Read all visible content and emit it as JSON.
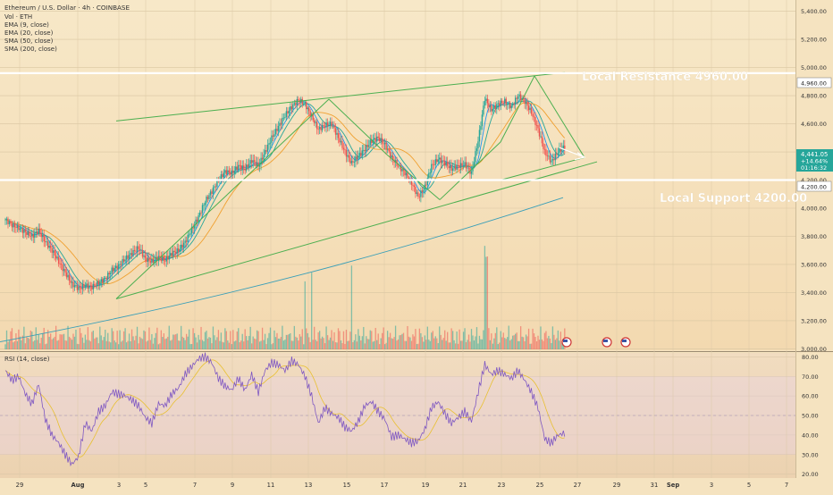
{
  "header": {
    "symbol_line": "Ethereum / U.S. Dollar · 4h · COINBASE",
    "indicators": [
      "Vol · ETH",
      "EMA (9, close)",
      "EMA (20, close)",
      "SMA (50, close)",
      "SMA (200, close)"
    ]
  },
  "price_badge": {
    "price": "4,441.05",
    "change": "+14.64%",
    "timer": "01:16:32"
  },
  "annotations": {
    "resistance_label": "Local Resistance 4960.00",
    "support_label": "Local Support 4200.00",
    "resistance_tick": "4,960.00",
    "support_tick": "4,200.00"
  },
  "rsi_label": "RSI (14, close)",
  "colors": {
    "bull": "#26a69a",
    "bear": "#ef5350",
    "ema9": "#2196f3",
    "ema20": "#26a69a",
    "sma50": "#f0a030",
    "sma200": "#3a9fb8",
    "pattern": "#4caf50",
    "rsi": "#7e57c2",
    "rsi_ma": "#e8c030"
  },
  "chart_data": {
    "type": "candlestick",
    "timeframe": "4h",
    "x_ticks": [
      "29",
      "Aug",
      "3",
      "5",
      "7",
      "9",
      "11",
      "13",
      "15",
      "17",
      "19",
      "21",
      "23",
      "25",
      "27",
      "29",
      "31",
      "Sep",
      "3",
      "5",
      "7"
    ],
    "price_axis": {
      "ticks": [
        "5,400.00",
        "5,200.00",
        "5,000.00",
        "4,800.00",
        "4,600.00",
        "4,400.00",
        "4,200.00",
        "4,000.00",
        "3,800.00",
        "3,600.00",
        "3,400.00",
        "3,200.00",
        "3,000.00"
      ],
      "range": [
        2990,
        5480
      ]
    },
    "rsi_axis": {
      "ticks": [
        "80.00",
        "70.00",
        "60.00",
        "50.00",
        "40.00",
        "30.00",
        "20.00"
      ],
      "range": [
        18,
        82
      ]
    },
    "levels": {
      "resistance": 4960,
      "support": 4200
    },
    "price_path": [
      [
        0,
        3920
      ],
      [
        5,
        3880
      ],
      [
        10,
        3860
      ],
      [
        15,
        3830
      ],
      [
        20,
        3800
      ],
      [
        25,
        3840
      ],
      [
        30,
        3760
      ],
      [
        35,
        3700
      ],
      [
        40,
        3620
      ],
      [
        45,
        3540
      ],
      [
        50,
        3460
      ],
      [
        55,
        3430
      ],
      [
        60,
        3450
      ],
      [
        65,
        3440
      ],
      [
        70,
        3470
      ],
      [
        75,
        3500
      ],
      [
        80,
        3560
      ],
      [
        85,
        3590
      ],
      [
        90,
        3640
      ],
      [
        95,
        3680
      ],
      [
        100,
        3720
      ],
      [
        105,
        3640
      ],
      [
        110,
        3620
      ],
      [
        115,
        3650
      ],
      [
        120,
        3630
      ],
      [
        125,
        3680
      ],
      [
        130,
        3700
      ],
      [
        135,
        3760
      ],
      [
        140,
        3850
      ],
      [
        145,
        3940
      ],
      [
        150,
        4050
      ],
      [
        155,
        4120
      ],
      [
        160,
        4200
      ],
      [
        165,
        4260
      ],
      [
        170,
        4250
      ],
      [
        175,
        4300
      ],
      [
        180,
        4280
      ],
      [
        185,
        4340
      ],
      [
        190,
        4300
      ],
      [
        195,
        4400
      ],
      [
        200,
        4500
      ],
      [
        205,
        4580
      ],
      [
        210,
        4660
      ],
      [
        215,
        4720
      ],
      [
        220,
        4770
      ],
      [
        225,
        4740
      ],
      [
        230,
        4650
      ],
      [
        235,
        4560
      ],
      [
        240,
        4590
      ],
      [
        245,
        4600
      ],
      [
        250,
        4500
      ],
      [
        255,
        4400
      ],
      [
        260,
        4320
      ],
      [
        265,
        4370
      ],
      [
        270,
        4420
      ],
      [
        275,
        4480
      ],
      [
        280,
        4500
      ],
      [
        285,
        4450
      ],
      [
        290,
        4360
      ],
      [
        295,
        4300
      ],
      [
        300,
        4250
      ],
      [
        305,
        4180
      ],
      [
        310,
        4080
      ],
      [
        315,
        4150
      ],
      [
        320,
        4300
      ],
      [
        325,
        4350
      ],
      [
        330,
        4320
      ],
      [
        335,
        4280
      ],
      [
        340,
        4300
      ],
      [
        345,
        4310
      ],
      [
        350,
        4250
      ],
      [
        355,
        4480
      ],
      [
        360,
        4780
      ],
      [
        365,
        4700
      ],
      [
        370,
        4740
      ],
      [
        375,
        4760
      ],
      [
        380,
        4720
      ],
      [
        385,
        4800
      ],
      [
        390,
        4760
      ],
      [
        395,
        4680
      ],
      [
        400,
        4560
      ],
      [
        405,
        4400
      ],
      [
        410,
        4330
      ],
      [
        415,
        4400
      ],
      [
        420,
        4441
      ]
    ],
    "rsi_path": [
      [
        0,
        73
      ],
      [
        5,
        68
      ],
      [
        10,
        70
      ],
      [
        15,
        61
      ],
      [
        20,
        56
      ],
      [
        25,
        66
      ],
      [
        30,
        48
      ],
      [
        35,
        40
      ],
      [
        40,
        36
      ],
      [
        45,
        30
      ],
      [
        50,
        25
      ],
      [
        55,
        29
      ],
      [
        60,
        46
      ],
      [
        65,
        42
      ],
      [
        70,
        52
      ],
      [
        75,
        55
      ],
      [
        80,
        62
      ],
      [
        85,
        61
      ],
      [
        90,
        60
      ],
      [
        95,
        58
      ],
      [
        100,
        55
      ],
      [
        105,
        49
      ],
      [
        110,
        46
      ],
      [
        115,
        56
      ],
      [
        120,
        55
      ],
      [
        125,
        61
      ],
      [
        130,
        64
      ],
      [
        135,
        71
      ],
      [
        140,
        75
      ],
      [
        145,
        79
      ],
      [
        150,
        80
      ],
      [
        155,
        77
      ],
      [
        160,
        69
      ],
      [
        165,
        65
      ],
      [
        170,
        63
      ],
      [
        175,
        69
      ],
      [
        180,
        63
      ],
      [
        185,
        71
      ],
      [
        190,
        62
      ],
      [
        195,
        73
      ],
      [
        200,
        77
      ],
      [
        205,
        76
      ],
      [
        210,
        73
      ],
      [
        215,
        78
      ],
      [
        220,
        76
      ],
      [
        225,
        70
      ],
      [
        230,
        60
      ],
      [
        235,
        46
      ],
      [
        240,
        54
      ],
      [
        245,
        51
      ],
      [
        250,
        49
      ],
      [
        255,
        44
      ],
      [
        260,
        42
      ],
      [
        265,
        47
      ],
      [
        270,
        55
      ],
      [
        275,
        57
      ],
      [
        280,
        52
      ],
      [
        285,
        48
      ],
      [
        290,
        39
      ],
      [
        295,
        40
      ],
      [
        300,
        38
      ],
      [
        305,
        36
      ],
      [
        310,
        37
      ],
      [
        315,
        43
      ],
      [
        320,
        54
      ],
      [
        325,
        57
      ],
      [
        330,
        51
      ],
      [
        335,
        46
      ],
      [
        340,
        49
      ],
      [
        345,
        52
      ],
      [
        350,
        47
      ],
      [
        355,
        62
      ],
      [
        360,
        76
      ],
      [
        365,
        71
      ],
      [
        370,
        73
      ],
      [
        375,
        71
      ],
      [
        380,
        69
      ],
      [
        385,
        73
      ],
      [
        390,
        68
      ],
      [
        395,
        62
      ],
      [
        400,
        54
      ],
      [
        405,
        38
      ],
      [
        410,
        36
      ],
      [
        415,
        40
      ],
      [
        420,
        41
      ]
    ],
    "volume_note": "relative volume bars under price pane"
  }
}
